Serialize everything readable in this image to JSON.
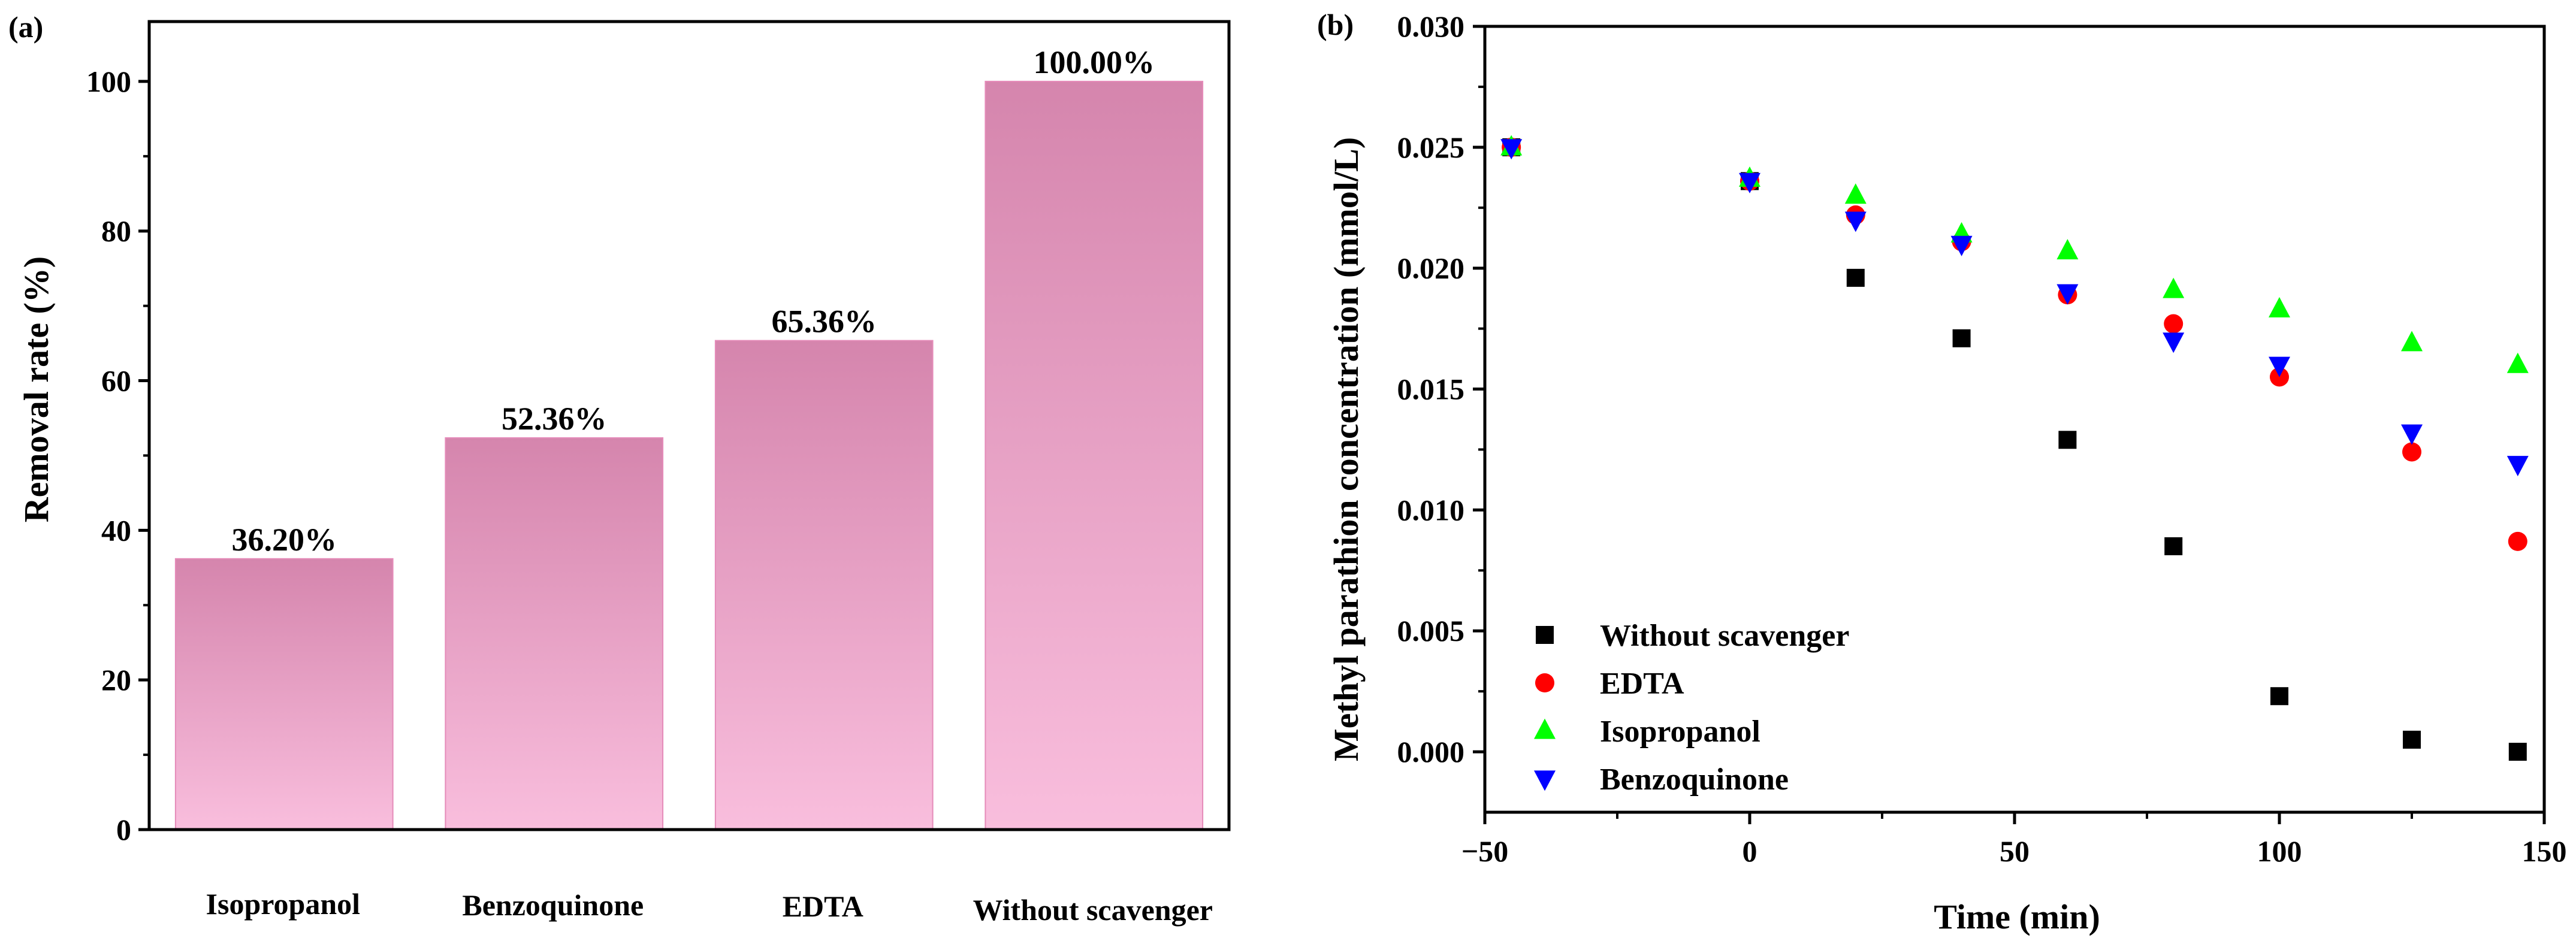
{
  "colors": {
    "bar_top": "#d585ad",
    "bar_bottom": "#f9bedd",
    "bar_edge": "#e58bb9",
    "without_scavenger": "#000000",
    "edta": "#ff0000",
    "isopropanol": "#00ff00",
    "benzoquinone": "#0000ff"
  },
  "chart_data": [
    {
      "type": "bar",
      "panel_label": "(a)",
      "title": "",
      "xlabel": "",
      "ylabel": "Removal rate (%)",
      "ylim": [
        0,
        108
      ],
      "yticks": [
        0,
        20,
        40,
        60,
        80,
        100
      ],
      "ytick_labels": [
        "0",
        "20",
        "40",
        "60",
        "80",
        "100"
      ],
      "categories": [
        "Isopropanol",
        "Benzoquinone",
        "EDTA",
        "Without scavenger"
      ],
      "values": [
        36.2,
        52.36,
        65.36,
        100.0
      ],
      "value_labels": [
        "36.20%",
        "52.36%",
        "65.36%",
        "100.00%"
      ],
      "grid": false
    },
    {
      "type": "scatter",
      "panel_label": "(b)",
      "title": "",
      "xlabel": "Time (min)",
      "ylabel": "Methyl  parathion concentration (mmol/L)",
      "xlim": [
        -50,
        150
      ],
      "ylim": [
        -0.0025,
        0.03
      ],
      "xticks": [
        -50,
        0,
        50,
        100,
        150
      ],
      "xtick_labels": [
        "−50",
        "0",
        "50",
        "100",
        "150"
      ],
      "yticks": [
        0.0,
        0.005,
        0.01,
        0.015,
        0.02,
        0.025,
        0.03
      ],
      "ytick_labels": [
        "0.000",
        "0.005",
        "0.010",
        "0.015",
        "0.020",
        "0.025",
        "0.030"
      ],
      "legend_position": "bottom-left",
      "grid": false,
      "series": [
        {
          "name": "Without scavenger",
          "marker": "square",
          "color_key": "without_scavenger",
          "x": [
            -45,
            0,
            20,
            40,
            60,
            80,
            100,
            125,
            145
          ],
          "y": [
            0.025,
            0.0236,
            0.0196,
            0.0171,
            0.0129,
            0.0085,
            0.0023,
            0.0005,
            0.0
          ]
        },
        {
          "name": "EDTA",
          "marker": "circle",
          "color_key": "edta",
          "x": [
            -45,
            0,
            20,
            40,
            60,
            80,
            100,
            125,
            145
          ],
          "y": [
            0.025,
            0.0236,
            0.0222,
            0.0211,
            0.0189,
            0.0177,
            0.0155,
            0.0124,
            0.0087
          ]
        },
        {
          "name": "Isopropanol",
          "marker": "triangle-up",
          "color_key": "isopropanol",
          "x": [
            -45,
            0,
            20,
            40,
            60,
            80,
            100,
            125,
            145
          ],
          "y": [
            0.025,
            0.0237,
            0.023,
            0.0214,
            0.0207,
            0.0191,
            0.0183,
            0.0169,
            0.016
          ]
        },
        {
          "name": "Benzoquinone",
          "marker": "triangle-down",
          "color_key": "benzoquinone",
          "x": [
            -45,
            0,
            20,
            40,
            60,
            80,
            100,
            125,
            145
          ],
          "y": [
            0.025,
            0.0236,
            0.022,
            0.021,
            0.019,
            0.017,
            0.016,
            0.0132,
            0.0119
          ]
        }
      ]
    }
  ]
}
